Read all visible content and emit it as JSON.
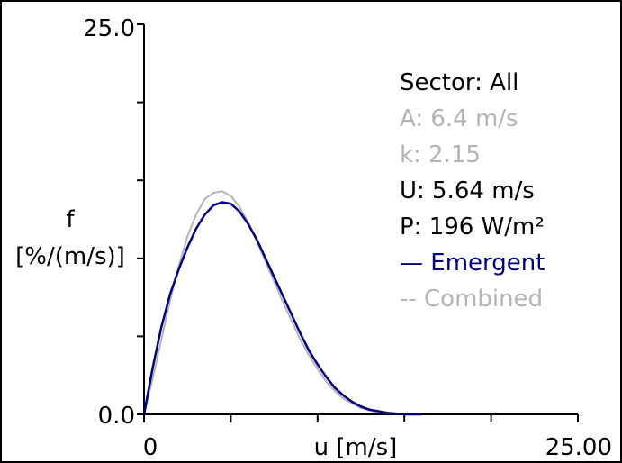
{
  "chart_data": {
    "type": "line",
    "xlabel": "u [m/s]",
    "ylabel_top": "f",
    "ylabel_bottom": "[%/(m/s)]",
    "xlim": [
      0,
      25
    ],
    "ylim": [
      0,
      25
    ],
    "x_tick_labels": {
      "min": "0",
      "max": "25.00"
    },
    "y_tick_labels": {
      "min": "0.0",
      "max": "25.0"
    },
    "x_ticks": [
      0,
      5,
      10,
      15,
      20,
      25
    ],
    "y_ticks": [
      0,
      5,
      10,
      15,
      20,
      25
    ],
    "info_lines": {
      "sector": "Sector: All",
      "A": "A: 6.4 m/s",
      "k": "k: 2.15",
      "U": "U: 5.64 m/s",
      "P": "P: 196 W/m²"
    },
    "series": [
      {
        "name": "Emergent",
        "legend_label": "— Emergent",
        "color": "#00007f",
        "x": [
          0,
          0.5,
          1,
          1.5,
          2,
          2.5,
          3,
          3.5,
          4,
          4.5,
          5,
          5.5,
          6,
          6.5,
          7,
          7.5,
          8,
          8.5,
          9,
          9.5,
          10,
          10.5,
          11,
          11.5,
          12,
          12.5,
          13,
          13.5,
          14,
          14.5,
          15,
          16
        ],
        "values": [
          0,
          3.0,
          5.6,
          7.7,
          9.3,
          10.7,
          11.9,
          12.8,
          13.4,
          13.6,
          13.5,
          13.0,
          12.2,
          11.2,
          10.0,
          8.8,
          7.6,
          6.4,
          5.2,
          4.1,
          3.2,
          2.4,
          1.7,
          1.2,
          0.8,
          0.5,
          0.3,
          0.2,
          0.1,
          0.05,
          0,
          0
        ]
      },
      {
        "name": "Combined",
        "legend_label": "-- Combined",
        "color": "#b4b4b4",
        "x": [
          0,
          0.5,
          1,
          1.5,
          2,
          2.5,
          3,
          3.5,
          4,
          4.5,
          5,
          5.5,
          6,
          6.5,
          7,
          7.5,
          8,
          8.5,
          9,
          9.5,
          10,
          10.5,
          11,
          11.5,
          12,
          12.5,
          13,
          13.5,
          14,
          14.5,
          15
        ],
        "values": [
          0,
          2.3,
          4.8,
          7.3,
          9.5,
          11.4,
          12.8,
          13.8,
          14.2,
          14.3,
          14.0,
          13.3,
          12.3,
          11.1,
          9.8,
          8.5,
          7.2,
          6.0,
          4.8,
          3.8,
          2.9,
          2.1,
          1.5,
          1.0,
          0.7,
          0.4,
          0.25,
          0.15,
          0.08,
          0.04,
          0
        ]
      }
    ]
  }
}
